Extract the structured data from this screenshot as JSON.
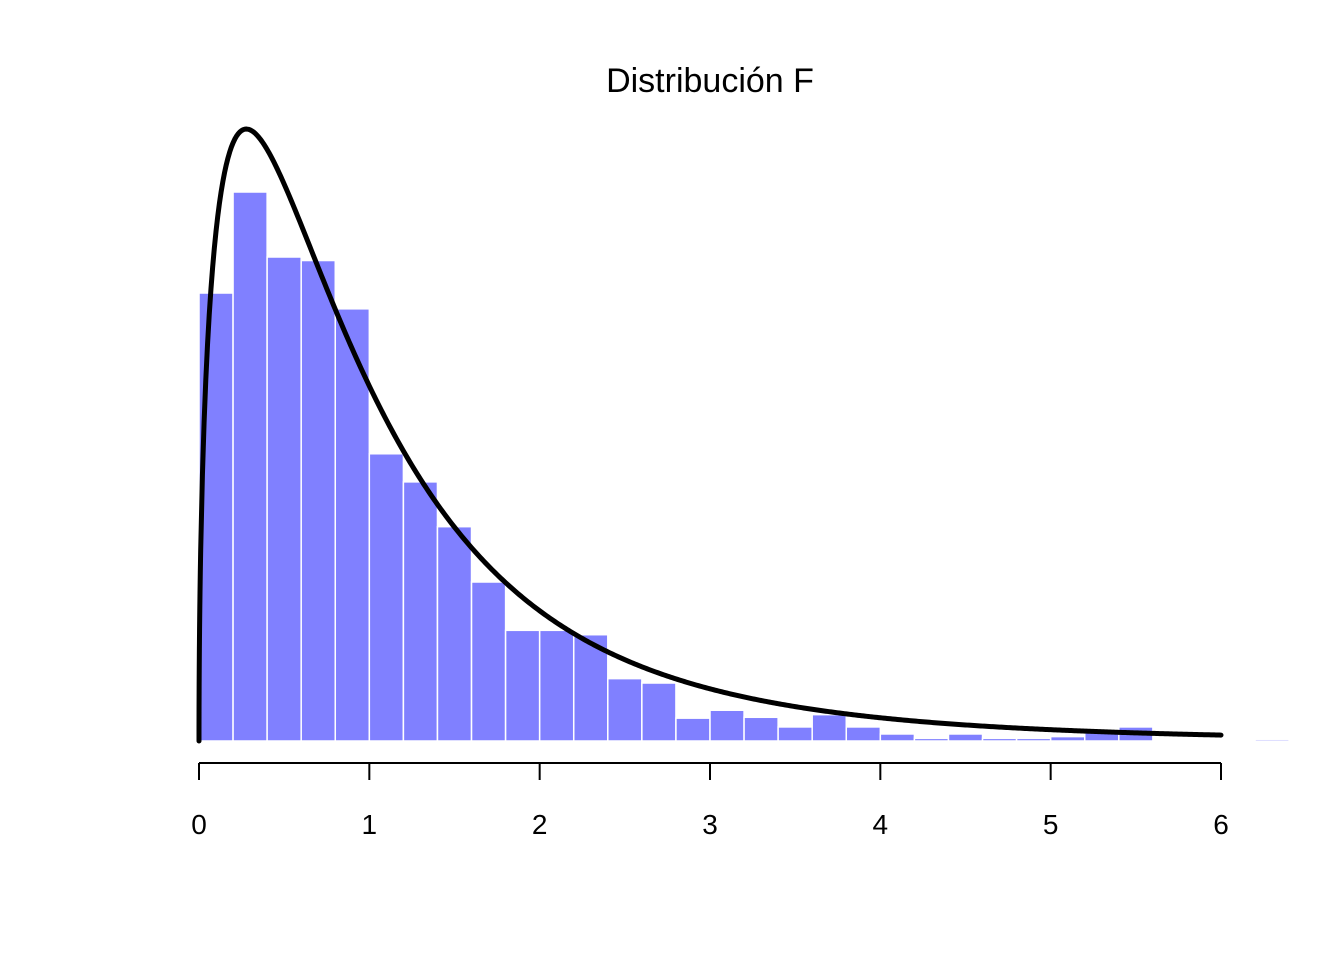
{
  "chart_data": {
    "type": "bar",
    "title": "Distribución F",
    "xlabel": "",
    "ylabel": "",
    "xlim": [
      0,
      6
    ],
    "ylim": [
      0,
      0.65
    ],
    "x_ticks": [
      "0",
      "1",
      "2",
      "3",
      "4",
      "5",
      "6"
    ],
    "x_tick_values": [
      0,
      1,
      2,
      3,
      4,
      5,
      6
    ],
    "bin_width": 0.2,
    "bins_start": [
      0.0,
      0.2,
      0.4,
      0.6,
      0.8,
      1.0,
      1.2,
      1.4,
      1.6,
      1.8,
      2.0,
      2.2,
      2.4,
      2.6,
      2.8,
      3.0,
      3.2,
      3.4,
      3.6,
      3.8,
      4.0,
      4.2,
      4.4,
      4.6,
      4.8,
      5.0,
      5.2,
      5.4,
      5.6,
      5.8,
      6.0,
      6.2
    ],
    "densities": [
      0.51,
      0.625,
      0.551,
      0.547,
      0.492,
      0.327,
      0.295,
      0.244,
      0.181,
      0.126,
      0.126,
      0.121,
      0.071,
      0.066,
      0.026,
      0.035,
      0.027,
      0.016,
      0.03,
      0.016,
      0.008,
      0.003,
      0.008,
      0.003,
      0.003,
      0.005,
      0.011,
      0.016,
      0.0,
      0.0,
      0.0,
      0.002
    ],
    "bar_color": "#8080ff",
    "bar_edge_color": "#ffffff",
    "density_curve": {
      "distribution": "F",
      "df1": 3,
      "df2": 10,
      "x_range": [
        0,
        6
      ],
      "color": "#000000"
    },
    "grid": false,
    "legend": "none"
  }
}
